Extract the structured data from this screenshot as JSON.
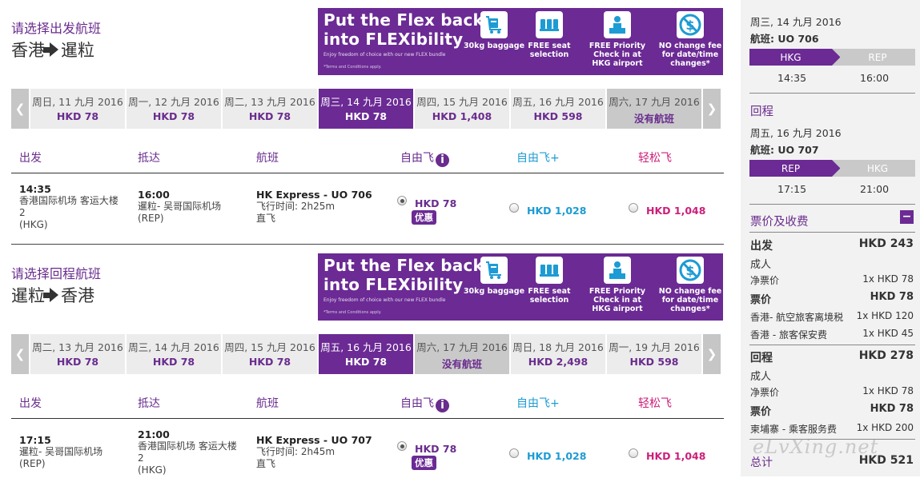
{
  "outbound": {
    "prompt": "请选择出发航班",
    "from": "香港",
    "to": "暹粒",
    "banner": {
      "headline": "Put the Flex back\ninto FLEXibility",
      "sub": "Enjoy freedom of choice with our new FLEX bundle",
      "terms": "*Terms and Conditions apply.",
      "features": [
        "30kg baggage",
        "FREE seat selection",
        "FREE Priority Check in at HKG airport",
        "NO change fee for date/time changes*"
      ]
    },
    "dates": [
      {
        "day": "周日, 11 九月 2016",
        "price": "HKD 78"
      },
      {
        "day": "周一, 12 九月 2016",
        "price": "HKD 78"
      },
      {
        "day": "周二, 13 九月 2016",
        "price": "HKD 78"
      },
      {
        "day": "周三, 14 九月 2016",
        "price": "HKD 78"
      },
      {
        "day": "周四, 15 九月 2016",
        "price": "HKD 1,408"
      },
      {
        "day": "周五, 16 九月 2016",
        "price": "HKD 598"
      },
      {
        "day": "周六, 17 九月 2016",
        "price": "没有航班"
      }
    ],
    "headers": {
      "depart": "出发",
      "arrive": "抵达",
      "flight": "航班",
      "fare1": "自由飞",
      "fare2": "自由飞+",
      "fare3": "轻松飞"
    },
    "flight": {
      "dep_time": "14:35",
      "dep_airport": "香港国际机场 客运大楼",
      "dep_terminal": "2",
      "dep_code": "(HKG)",
      "arr_time": "16:00",
      "arr_airport": "暹粒- 吴哥国际机场",
      "arr_code": "(REP)",
      "name": "HK Express - UO 706",
      "duration": "飞行时间: 2h25m",
      "type": "直飞",
      "fare1": "HKD 78",
      "promo": "优惠",
      "fare2": "HKD 1,028",
      "fare3": "HKD 1,048"
    }
  },
  "inbound": {
    "prompt": "请选择回程航班",
    "from": "暹粒",
    "to": "香港",
    "banner": {
      "headline": "Put the Flex back\ninto FLEXibility",
      "sub": "Enjoy freedom of choice with our new FLEX bundle",
      "terms": "*Terms and Conditions apply.",
      "features": [
        "30kg baggage",
        "FREE seat selection",
        "FREE Priority Check in at HKG airport",
        "NO change fee for date/time changes*"
      ]
    },
    "dates": [
      {
        "day": "周二, 13 九月 2016",
        "price": "HKD 78"
      },
      {
        "day": "周三, 14 九月 2016",
        "price": "HKD 78"
      },
      {
        "day": "周四, 15 九月 2016",
        "price": "HKD 78"
      },
      {
        "day": "周五, 16 九月 2016",
        "price": "HKD 78"
      },
      {
        "day": "周六, 17 九月 2016",
        "price": "没有航班"
      },
      {
        "day": "周日, 18 九月 2016",
        "price": "HKD 2,498"
      },
      {
        "day": "周一, 19 九月 2016",
        "price": "HKD 598"
      }
    ],
    "headers": {
      "depart": "出发",
      "arrive": "抵达",
      "flight": "航班",
      "fare1": "自由飞",
      "fare2": "自由飞+",
      "fare3": "轻松飞"
    },
    "flight": {
      "dep_time": "17:15",
      "dep_airport": "暹粒- 吴哥国际机场",
      "dep_code": "(REP)",
      "arr_time": "21:00",
      "arr_airport": "香港国际机场 客运大楼",
      "arr_terminal": "2",
      "arr_code": "(HKG)",
      "name": "HK Express - UO 707",
      "duration": "飞行时间: 2h45m",
      "type": "直飞",
      "fare1": "HKD 78",
      "promo": "优惠",
      "fare2": "HKD 1,028",
      "fare3": "HKD 1,048"
    }
  },
  "summary": {
    "out": {
      "date": "周三, 14 九月 2016",
      "flight": "航班: UO 706",
      "from": "HKG",
      "to": "REP",
      "dep": "14:35",
      "arr": "16:00"
    },
    "ret_title": "回程",
    "ret": {
      "date": "周五, 16 九月 2016",
      "flight": "航班: UO 707",
      "from": "REP",
      "to": "HKG",
      "dep": "17:15",
      "arr": "21:00"
    },
    "fees_title": "票价及收费",
    "out_label": "出发",
    "out_total": "HKD 243",
    "adult1": "成人",
    "net1_label": "净票价",
    "net1": "1x HKD 78",
    "fare1_label": "票价",
    "fare1": "HKD 78",
    "tax1_label": "香港- 航空旅客离境税",
    "tax1": "1x HKD 120",
    "tax2_label": "香港 - 旅客保安费",
    "tax2": "1x HKD 45",
    "ret_label": "回程",
    "ret_total": "HKD 278",
    "adult2": "成人",
    "net2_label": "净票价",
    "net2": "1x HKD 78",
    "fare2_label": "票价",
    "fare2": "HKD 78",
    "tax3_label": "柬埔寨 - 乘客服务费",
    "tax3": "1x HKD 200",
    "total_label": "总计",
    "total": "HKD 521"
  },
  "watermark": "eLvXing.net",
  "colors": {
    "purple": "#6b2a94",
    "blue": "#1d9bd4",
    "magenta": "#cc1f7a",
    "gray": "#c9c9c9"
  }
}
